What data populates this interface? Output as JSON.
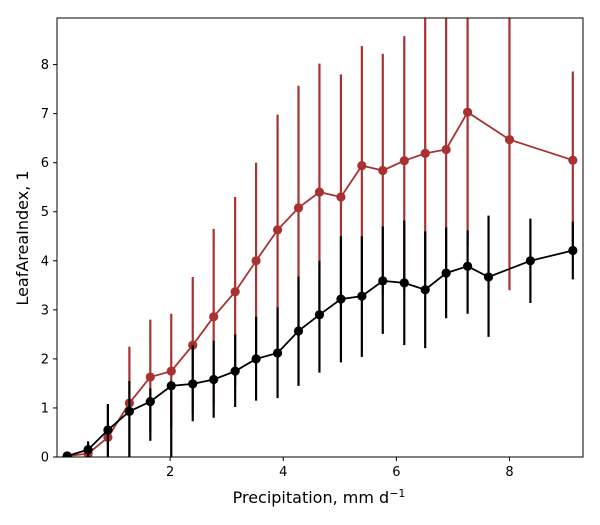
{
  "chart_data": {
    "type": "line",
    "xlabel": "Precipitation,  mm d",
    "xlabel_sup": "−1",
    "ylabel": "LeafAreaIndex,  1",
    "xlim": [
      0.0,
      9.3
    ],
    "ylim": [
      0,
      8.95
    ],
    "xticks": [
      2,
      4,
      6,
      8
    ],
    "yticks": [
      0,
      1,
      2,
      3,
      4,
      5,
      6,
      7,
      8
    ],
    "grid": false,
    "legend": "none",
    "series": [
      {
        "color": "#a83232",
        "x": [
          0.18,
          0.55,
          0.9,
          1.28,
          1.65,
          2.02,
          2.4,
          2.77,
          3.15,
          3.52,
          3.9,
          4.27,
          4.64,
          5.02,
          5.39,
          5.76,
          6.14,
          6.51,
          6.88,
          7.26,
          8.0,
          9.12
        ],
        "y": [
          0.02,
          0.07,
          0.4,
          1.1,
          1.63,
          1.75,
          2.28,
          2.86,
          3.37,
          4.0,
          4.63,
          5.08,
          5.4,
          5.3,
          5.94,
          5.84,
          6.04,
          6.19,
          6.27,
          7.03,
          6.47,
          6.05
        ],
        "err_low": [
          0.0,
          0.0,
          0.0,
          0.0,
          0.5,
          0.6,
          0.88,
          1.07,
          1.45,
          2.0,
          2.2,
          2.5,
          2.85,
          2.8,
          3.4,
          3.3,
          3.4,
          3.6,
          3.65,
          4.3,
          3.4,
          4.3
        ],
        "err_high": [
          0.05,
          0.2,
          1.05,
          2.25,
          2.8,
          2.92,
          3.67,
          4.65,
          5.3,
          6.0,
          6.98,
          7.57,
          8.02,
          7.8,
          8.38,
          8.22,
          8.58,
          8.95,
          8.95,
          8.95,
          8.95,
          7.86
        ]
      },
      {
        "color": "#000000",
        "x": [
          0.18,
          0.55,
          0.9,
          1.28,
          1.65,
          2.02,
          2.4,
          2.77,
          3.15,
          3.52,
          3.9,
          4.27,
          4.64,
          5.02,
          5.39,
          5.76,
          6.14,
          6.51,
          6.88,
          7.26,
          7.63,
          8.37,
          9.12
        ],
        "y": [
          0.02,
          0.15,
          0.55,
          0.93,
          1.13,
          1.45,
          1.49,
          1.58,
          1.75,
          2.0,
          2.12,
          2.57,
          2.9,
          3.22,
          3.28,
          3.59,
          3.55,
          3.41,
          3.75,
          3.89,
          3.67,
          4.0,
          4.21
        ],
        "err_low": [
          0.0,
          0.0,
          0.0,
          0.0,
          0.33,
          0.0,
          0.73,
          0.8,
          1.02,
          1.15,
          1.2,
          1.45,
          1.72,
          1.93,
          2.04,
          2.51,
          2.28,
          2.22,
          2.83,
          2.92,
          2.45,
          3.14,
          3.62
        ],
        "err_high": [
          0.05,
          0.32,
          1.08,
          1.55,
          1.4,
          1.55,
          2.28,
          2.37,
          2.5,
          2.86,
          3.05,
          3.68,
          4.0,
          4.5,
          4.5,
          4.7,
          4.82,
          4.6,
          4.68,
          4.62,
          4.92,
          4.86,
          4.8
        ]
      }
    ]
  }
}
